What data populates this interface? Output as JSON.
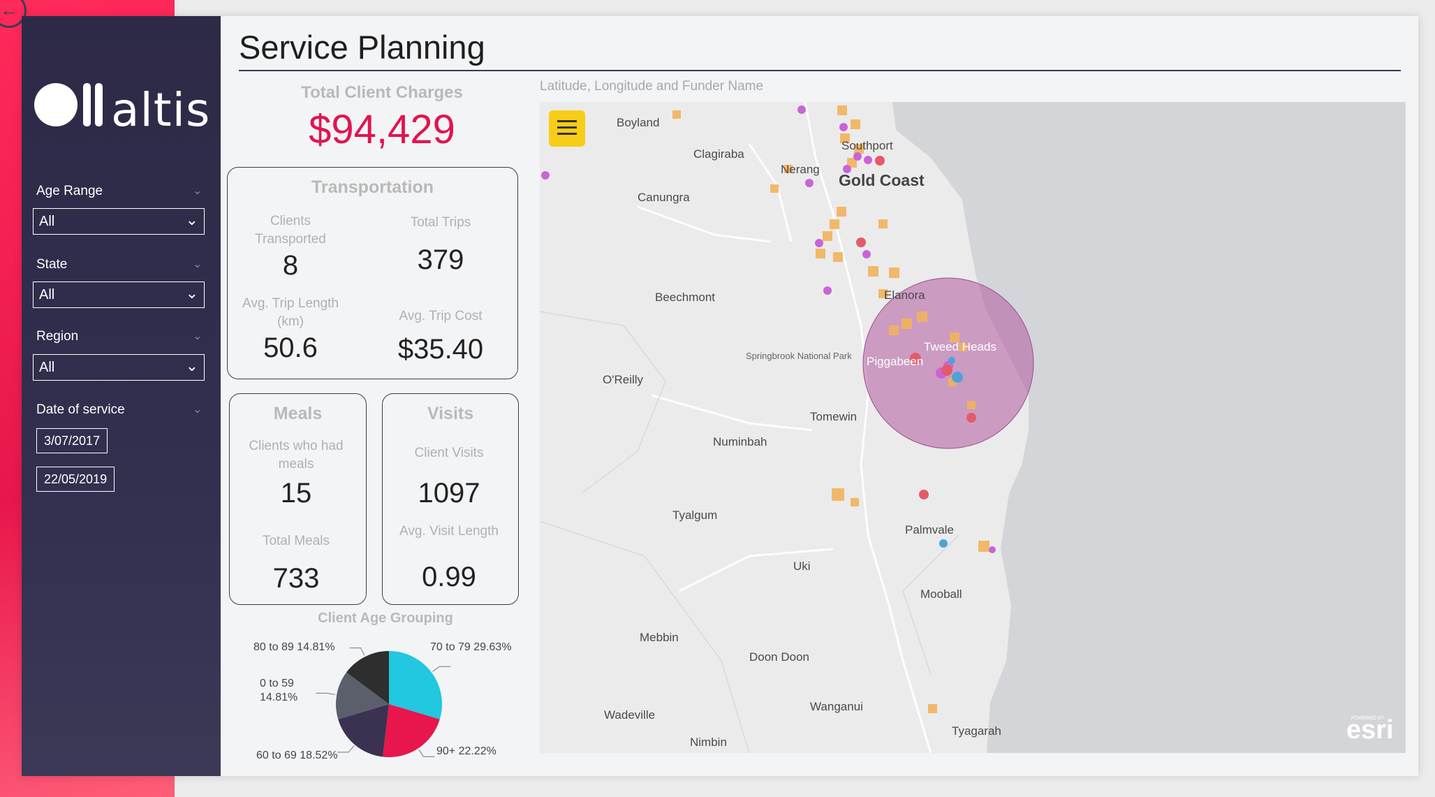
{
  "app": {
    "title": "Service Planning",
    "logo_text": "altis"
  },
  "filters": {
    "age_range": {
      "label": "Age Range",
      "value": "All"
    },
    "state": {
      "label": "State",
      "value": "All"
    },
    "region": {
      "label": "Region",
      "value": "All"
    },
    "date_of_service": {
      "label": "Date of service",
      "start": "3/07/2017",
      "end": "22/05/2019"
    }
  },
  "kpi": {
    "label": "Total Client Charges",
    "value": "$94,429"
  },
  "transportation": {
    "title": "Transportation",
    "clients_label": "Clients Transported",
    "clients_value": "8",
    "trips_label": "Total Trips",
    "trips_value": "379",
    "length_label": "Avg. Trip Length (km)",
    "length_value": "50.6",
    "cost_label": "Avg. Trip Cost",
    "cost_value": "$35.40"
  },
  "meals": {
    "title": "Meals",
    "clients_label": "Clients who had meals",
    "clients_value": "15",
    "total_label": "Total Meals",
    "total_value": "733"
  },
  "visits": {
    "title": "Visits",
    "visits_label": "Client Visits",
    "visits_value": "1097",
    "length_label": "Avg. Visit Length",
    "length_value": "0.99"
  },
  "chart_data": {
    "type": "pie",
    "title": "Client Age Grouping",
    "categories": [
      "70 to 79",
      "90+",
      "60 to 69",
      "0 to 59",
      "80 to 89"
    ],
    "values": [
      29.63,
      22.22,
      18.52,
      14.81,
      14.81
    ],
    "labels": [
      "70 to 79 29.63%",
      "90+ 22.22%",
      "60 to 69 18.52%",
      "0 to 59 14.81%",
      "80 to 89 14.81%"
    ],
    "colors": [
      "#22c7e0",
      "#e8164c",
      "#3a3250",
      "#5a5f6b",
      "#2e2e2e"
    ]
  },
  "map": {
    "title": "Latitude, Longitude and Funder Name",
    "places": [
      "Boyland",
      "Clagiraba",
      "Southport",
      "Nerang",
      "Gold Coast",
      "Canungra",
      "Beechmont",
      "Elanora",
      "Tweed Heads",
      "Piggabeen",
      "O'Reilly",
      "Springbrook National Park",
      "Tomewin",
      "Numinbah",
      "Tyalgum",
      "Palmvale",
      "Uki",
      "Mooball",
      "Mebbin",
      "Doon Doon",
      "Wanganui",
      "Wadeville",
      "Tyagarah",
      "Nimbin"
    ],
    "attribution": "esri",
    "attribution_small": "POWERED BY"
  }
}
